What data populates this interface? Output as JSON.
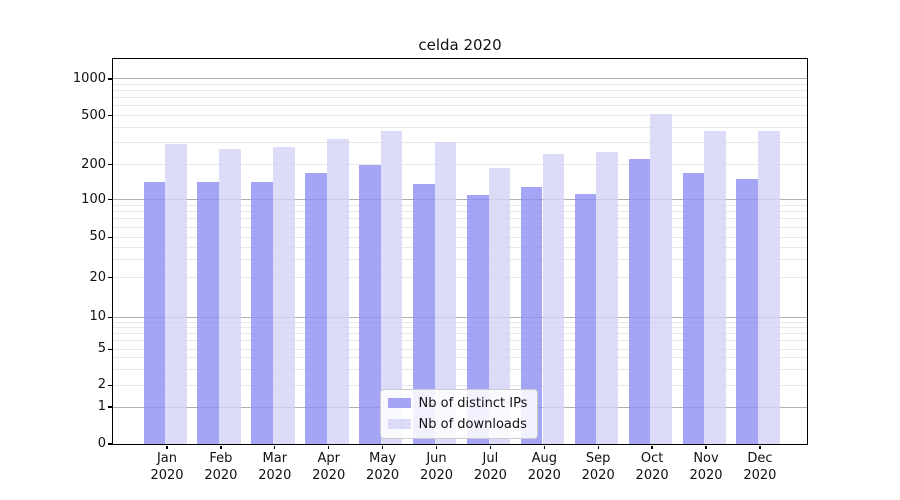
{
  "title": "celda 2020",
  "chart_data": {
    "type": "bar",
    "title": "celda 2020",
    "categories": [
      "Jan",
      "Feb",
      "Mar",
      "Apr",
      "May",
      "Jun",
      "Jul",
      "Aug",
      "Sep",
      "Oct",
      "Nov",
      "Dec"
    ],
    "category_year": "2020",
    "series": [
      {
        "name": "Nb of distinct IPs",
        "color": "#8f8ff2",
        "values": [
          141,
          140,
          140,
          168,
          196,
          135,
          108,
          128,
          110,
          220,
          167,
          150
        ]
      },
      {
        "name": "Nb of downloads",
        "color": "#d3d3f7",
        "values": [
          290,
          265,
          278,
          320,
          375,
          305,
          187,
          240,
          250,
          510,
          375,
          375
        ]
      }
    ],
    "xlabel": "",
    "ylabel": "",
    "yscale": "symlog",
    "yticks": [
      0,
      1,
      2,
      5,
      10,
      20,
      50,
      100,
      200,
      500,
      1000
    ],
    "ylim": [
      0,
      1150
    ],
    "grid": true,
    "legend_position": "inside lower-center"
  }
}
